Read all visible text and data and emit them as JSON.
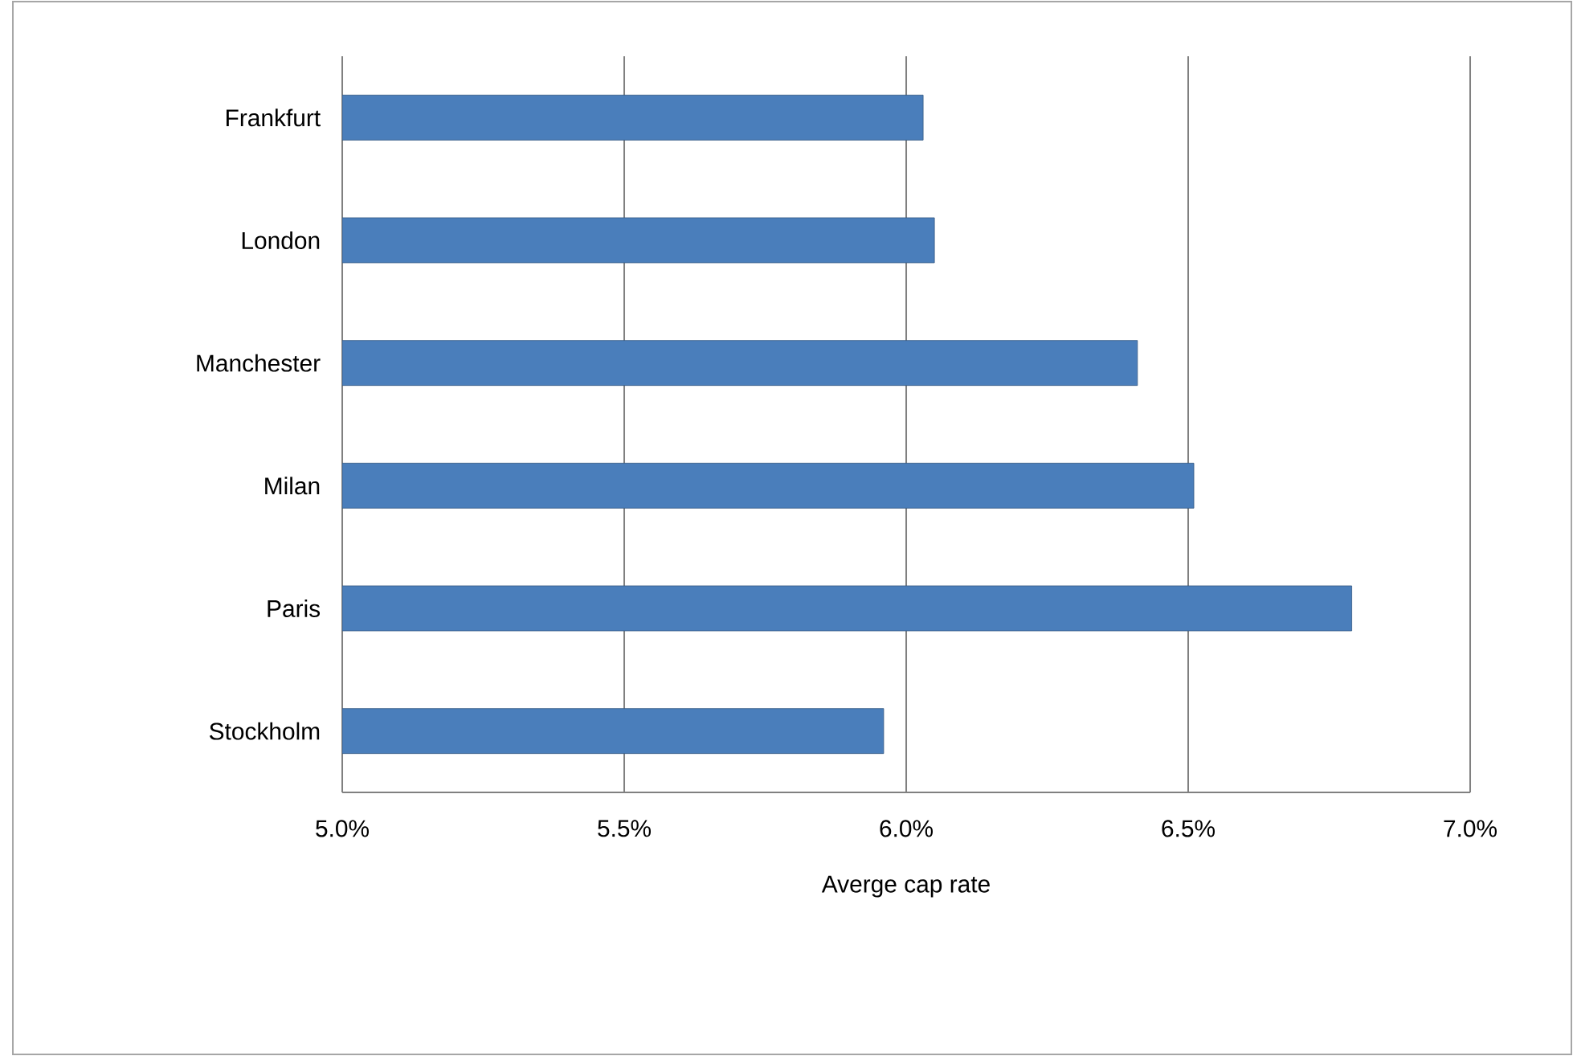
{
  "chart_data": {
    "type": "bar",
    "orientation": "horizontal",
    "xlabel": "Averge cap rate",
    "categories": [
      "Frankfurt",
      "London",
      "Manchester",
      "Milan",
      "Paris",
      "Stockholm"
    ],
    "values": [
      6.03,
      6.05,
      6.41,
      6.51,
      6.79,
      5.96
    ],
    "color": "#4a7ebb",
    "xlim": [
      5.0,
      7.0
    ],
    "xticks": [
      {
        "value": 5.0,
        "label": "5.0%"
      },
      {
        "value": 5.5,
        "label": "5.5%"
      },
      {
        "value": 6.0,
        "label": "6.0%"
      },
      {
        "value": 6.5,
        "label": "6.5%"
      },
      {
        "value": 7.0,
        "label": "7.0%"
      }
    ],
    "grid": "x"
  }
}
